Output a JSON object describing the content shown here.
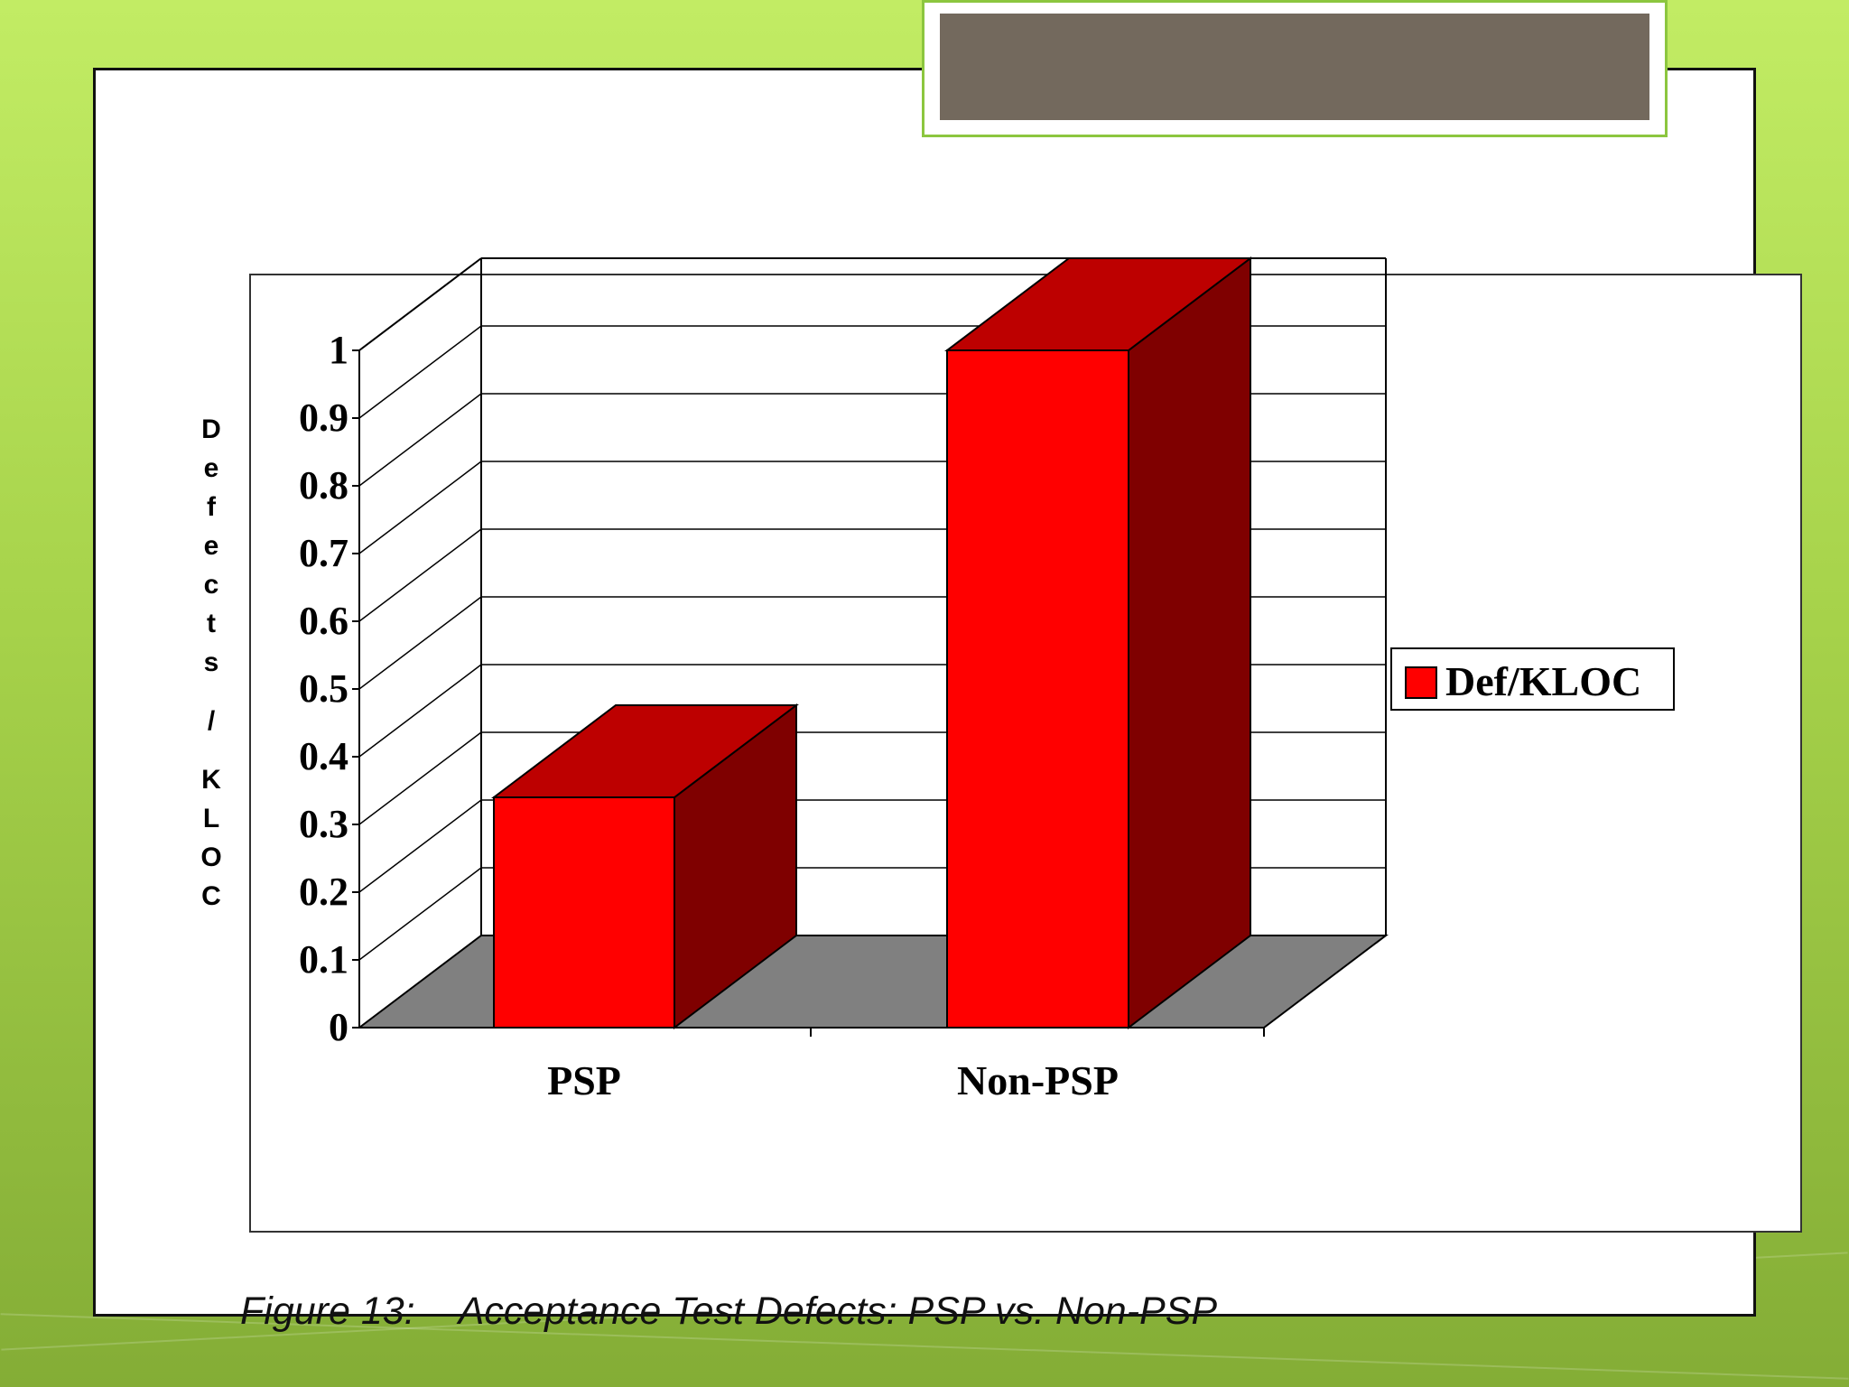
{
  "caption": {
    "figure_number": "Figure 13:",
    "text": "Acceptance Test Defects: PSP vs. Non-PSP"
  },
  "colors": {
    "bar_front": "#ff0000",
    "bar_top": "#bd0000",
    "bar_side": "#7f0000",
    "floor": "#808080",
    "slide_title_fill": "#73695d",
    "title_border": "#8cc63f"
  },
  "chart_data": {
    "type": "bar",
    "style": "3d",
    "categories": [
      "PSP",
      "Non-PSP"
    ],
    "series": [
      {
        "name": "Def/KLOC",
        "values": [
          0.34,
          1.0
        ]
      }
    ],
    "title": "",
    "xlabel": "",
    "ylabel": "Defects / KLOC",
    "ylim": [
      0,
      1
    ],
    "yticks": [
      "0",
      "0.1",
      "0.2",
      "0.3",
      "0.4",
      "0.5",
      "0.6",
      "0.7",
      "0.8",
      "0.9",
      "1"
    ],
    "grid": true,
    "legend_position": "right"
  }
}
